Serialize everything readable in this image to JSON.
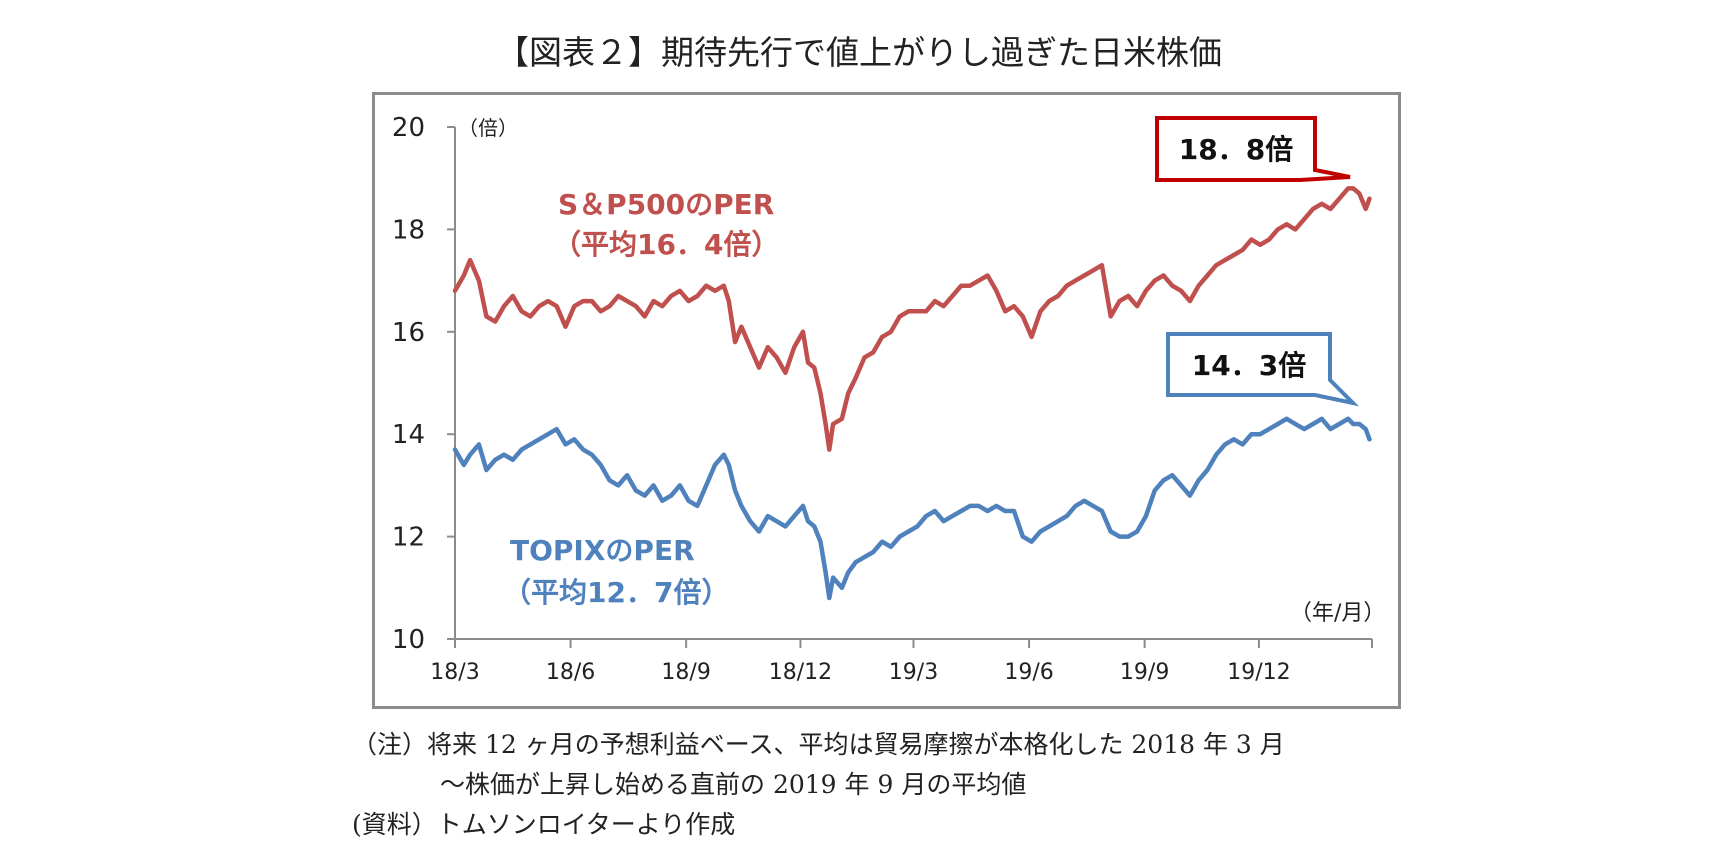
{
  "title": "【図表２】期待先行で値上がりし過ぎた日米株価",
  "notes": {
    "line1": "（注）将来 12 ヶ月の予想利益ベース、平均は貿易摩擦が本格化した 2018 年 3 月",
    "line2": "～株価が上昇し始める直前の 2019 年 9 月の平均値",
    "line3": "(資料）トムソンロイターより作成"
  },
  "colors": {
    "sp500": "#c0504d",
    "topix": "#4f81bd",
    "sp_callout_border": "#c00000",
    "axis": "#8c8c8c"
  },
  "chart_data": {
    "type": "line",
    "y_unit_label": "（倍）",
    "x_unit_label": "（年/月）",
    "ylim": [
      10,
      20
    ],
    "yticks": [
      10,
      12,
      14,
      16,
      18,
      20
    ],
    "xlim": [
      "2018-03",
      "2020-02"
    ],
    "xticks": [
      {
        "label": "18/3",
        "date": "2018-03"
      },
      {
        "label": "18/6",
        "date": "2018-06"
      },
      {
        "label": "18/9",
        "date": "2018-09"
      },
      {
        "label": "18/12",
        "date": "2018-12"
      },
      {
        "label": "19/3",
        "date": "2019-03"
      },
      {
        "label": "19/6",
        "date": "2019-06"
      },
      {
        "label": "19/9",
        "date": "2019-09"
      },
      {
        "label": "19/12",
        "date": "2019-12"
      }
    ],
    "series": [
      {
        "key": "sp500",
        "name": "S＆P500のPER",
        "avg_label": "（平均16．4倍）",
        "callout": "18．8倍",
        "points": [
          [
            "2018-03-01",
            16.8
          ],
          [
            "2018-03-08",
            17.1
          ],
          [
            "2018-03-13",
            17.4
          ],
          [
            "2018-03-20",
            17.0
          ],
          [
            "2018-03-26",
            16.3
          ],
          [
            "2018-04-02",
            16.2
          ],
          [
            "2018-04-09",
            16.5
          ],
          [
            "2018-04-16",
            16.7
          ],
          [
            "2018-04-23",
            16.4
          ],
          [
            "2018-04-30",
            16.3
          ],
          [
            "2018-05-07",
            16.5
          ],
          [
            "2018-05-14",
            16.6
          ],
          [
            "2018-05-21",
            16.5
          ],
          [
            "2018-05-28",
            16.1
          ],
          [
            "2018-06-04",
            16.5
          ],
          [
            "2018-06-11",
            16.6
          ],
          [
            "2018-06-18",
            16.6
          ],
          [
            "2018-06-25",
            16.4
          ],
          [
            "2018-07-02",
            16.5
          ],
          [
            "2018-07-09",
            16.7
          ],
          [
            "2018-07-16",
            16.6
          ],
          [
            "2018-07-23",
            16.5
          ],
          [
            "2018-07-30",
            16.3
          ],
          [
            "2018-08-06",
            16.6
          ],
          [
            "2018-08-13",
            16.5
          ],
          [
            "2018-08-20",
            16.7
          ],
          [
            "2018-08-27",
            16.8
          ],
          [
            "2018-09-03",
            16.6
          ],
          [
            "2018-09-10",
            16.7
          ],
          [
            "2018-09-17",
            16.9
          ],
          [
            "2018-09-24",
            16.8
          ],
          [
            "2018-10-01",
            16.9
          ],
          [
            "2018-10-05",
            16.6
          ],
          [
            "2018-10-10",
            15.8
          ],
          [
            "2018-10-15",
            16.1
          ],
          [
            "2018-10-22",
            15.7
          ],
          [
            "2018-10-29",
            15.3
          ],
          [
            "2018-11-05",
            15.7
          ],
          [
            "2018-11-12",
            15.5
          ],
          [
            "2018-11-19",
            15.2
          ],
          [
            "2018-11-26",
            15.7
          ],
          [
            "2018-12-03",
            16.0
          ],
          [
            "2018-12-07",
            15.4
          ],
          [
            "2018-12-12",
            15.3
          ],
          [
            "2018-12-17",
            14.8
          ],
          [
            "2018-12-21",
            14.2
          ],
          [
            "2018-12-24",
            13.7
          ],
          [
            "2018-12-27",
            14.2
          ],
          [
            "2019-01-03",
            14.3
          ],
          [
            "2019-01-08",
            14.8
          ],
          [
            "2019-01-14",
            15.1
          ],
          [
            "2019-01-21",
            15.5
          ],
          [
            "2019-01-28",
            15.6
          ],
          [
            "2019-02-04",
            15.9
          ],
          [
            "2019-02-11",
            16.0
          ],
          [
            "2019-02-18",
            16.3
          ],
          [
            "2019-02-25",
            16.4
          ],
          [
            "2019-03-04",
            16.4
          ],
          [
            "2019-03-11",
            16.4
          ],
          [
            "2019-03-18",
            16.6
          ],
          [
            "2019-03-25",
            16.5
          ],
          [
            "2019-04-01",
            16.7
          ],
          [
            "2019-04-08",
            16.9
          ],
          [
            "2019-04-15",
            16.9
          ],
          [
            "2019-04-22",
            17.0
          ],
          [
            "2019-04-29",
            17.1
          ],
          [
            "2019-05-06",
            16.8
          ],
          [
            "2019-05-13",
            16.4
          ],
          [
            "2019-05-20",
            16.5
          ],
          [
            "2019-05-27",
            16.3
          ],
          [
            "2019-06-03",
            15.9
          ],
          [
            "2019-06-10",
            16.4
          ],
          [
            "2019-06-17",
            16.6
          ],
          [
            "2019-06-24",
            16.7
          ],
          [
            "2019-07-01",
            16.9
          ],
          [
            "2019-07-08",
            17.0
          ],
          [
            "2019-07-15",
            17.1
          ],
          [
            "2019-07-22",
            17.2
          ],
          [
            "2019-07-29",
            17.3
          ],
          [
            "2019-08-05",
            16.3
          ],
          [
            "2019-08-12",
            16.6
          ],
          [
            "2019-08-19",
            16.7
          ],
          [
            "2019-08-26",
            16.5
          ],
          [
            "2019-09-02",
            16.8
          ],
          [
            "2019-09-09",
            17.0
          ],
          [
            "2019-09-16",
            17.1
          ],
          [
            "2019-09-23",
            16.9
          ],
          [
            "2019-09-30",
            16.8
          ],
          [
            "2019-10-07",
            16.6
          ],
          [
            "2019-10-14",
            16.9
          ],
          [
            "2019-10-21",
            17.1
          ],
          [
            "2019-10-28",
            17.3
          ],
          [
            "2019-11-04",
            17.4
          ],
          [
            "2019-11-11",
            17.5
          ],
          [
            "2019-11-18",
            17.6
          ],
          [
            "2019-11-25",
            17.8
          ],
          [
            "2019-12-02",
            17.7
          ],
          [
            "2019-12-09",
            17.8
          ],
          [
            "2019-12-16",
            18.0
          ],
          [
            "2019-12-23",
            18.1
          ],
          [
            "2019-12-30",
            18.0
          ],
          [
            "2020-01-06",
            18.2
          ],
          [
            "2020-01-13",
            18.4
          ],
          [
            "2020-01-20",
            18.5
          ],
          [
            "2020-01-27",
            18.4
          ],
          [
            "2020-02-03",
            18.6
          ],
          [
            "2020-02-10",
            18.8
          ],
          [
            "2020-02-14",
            18.8
          ],
          [
            "2020-02-19",
            18.7
          ],
          [
            "2020-02-24",
            18.4
          ],
          [
            "2020-02-27",
            18.6
          ]
        ]
      },
      {
        "key": "topix",
        "name": "TOPIXのPER",
        "avg_label": "（平均12．7倍）",
        "callout": "14．3倍",
        "points": [
          [
            "2018-03-01",
            13.7
          ],
          [
            "2018-03-08",
            13.4
          ],
          [
            "2018-03-13",
            13.6
          ],
          [
            "2018-03-20",
            13.8
          ],
          [
            "2018-03-26",
            13.3
          ],
          [
            "2018-04-02",
            13.5
          ],
          [
            "2018-04-09",
            13.6
          ],
          [
            "2018-04-16",
            13.5
          ],
          [
            "2018-04-23",
            13.7
          ],
          [
            "2018-04-30",
            13.8
          ],
          [
            "2018-05-07",
            13.9
          ],
          [
            "2018-05-14",
            14.0
          ],
          [
            "2018-05-21",
            14.1
          ],
          [
            "2018-05-28",
            13.8
          ],
          [
            "2018-06-04",
            13.9
          ],
          [
            "2018-06-11",
            13.7
          ],
          [
            "2018-06-18",
            13.6
          ],
          [
            "2018-06-25",
            13.4
          ],
          [
            "2018-07-02",
            13.1
          ],
          [
            "2018-07-09",
            13.0
          ],
          [
            "2018-07-16",
            13.2
          ],
          [
            "2018-07-23",
            12.9
          ],
          [
            "2018-07-30",
            12.8
          ],
          [
            "2018-08-06",
            13.0
          ],
          [
            "2018-08-13",
            12.7
          ],
          [
            "2018-08-20",
            12.8
          ],
          [
            "2018-08-27",
            13.0
          ],
          [
            "2018-09-03",
            12.7
          ],
          [
            "2018-09-10",
            12.6
          ],
          [
            "2018-09-17",
            13.0
          ],
          [
            "2018-09-24",
            13.4
          ],
          [
            "2018-10-01",
            13.6
          ],
          [
            "2018-10-05",
            13.4
          ],
          [
            "2018-10-10",
            12.9
          ],
          [
            "2018-10-15",
            12.6
          ],
          [
            "2018-10-22",
            12.3
          ],
          [
            "2018-10-29",
            12.1
          ],
          [
            "2018-11-05",
            12.4
          ],
          [
            "2018-11-12",
            12.3
          ],
          [
            "2018-11-19",
            12.2
          ],
          [
            "2018-11-26",
            12.4
          ],
          [
            "2018-12-03",
            12.6
          ],
          [
            "2018-12-07",
            12.3
          ],
          [
            "2018-12-12",
            12.2
          ],
          [
            "2018-12-17",
            11.9
          ],
          [
            "2018-12-21",
            11.3
          ],
          [
            "2018-12-24",
            10.8
          ],
          [
            "2018-12-27",
            11.2
          ],
          [
            "2019-01-03",
            11.0
          ],
          [
            "2019-01-08",
            11.3
          ],
          [
            "2019-01-14",
            11.5
          ],
          [
            "2019-01-21",
            11.6
          ],
          [
            "2019-01-28",
            11.7
          ],
          [
            "2019-02-04",
            11.9
          ],
          [
            "2019-02-11",
            11.8
          ],
          [
            "2019-02-18",
            12.0
          ],
          [
            "2019-02-25",
            12.1
          ],
          [
            "2019-03-04",
            12.2
          ],
          [
            "2019-03-11",
            12.4
          ],
          [
            "2019-03-18",
            12.5
          ],
          [
            "2019-03-25",
            12.3
          ],
          [
            "2019-04-01",
            12.4
          ],
          [
            "2019-04-08",
            12.5
          ],
          [
            "2019-04-15",
            12.6
          ],
          [
            "2019-04-22",
            12.6
          ],
          [
            "2019-04-29",
            12.5
          ],
          [
            "2019-05-06",
            12.6
          ],
          [
            "2019-05-13",
            12.5
          ],
          [
            "2019-05-20",
            12.5
          ],
          [
            "2019-05-27",
            12.0
          ],
          [
            "2019-06-03",
            11.9
          ],
          [
            "2019-06-10",
            12.1
          ],
          [
            "2019-06-17",
            12.2
          ],
          [
            "2019-06-24",
            12.3
          ],
          [
            "2019-07-01",
            12.4
          ],
          [
            "2019-07-08",
            12.6
          ],
          [
            "2019-07-15",
            12.7
          ],
          [
            "2019-07-22",
            12.6
          ],
          [
            "2019-07-29",
            12.5
          ],
          [
            "2019-08-05",
            12.1
          ],
          [
            "2019-08-12",
            12.0
          ],
          [
            "2019-08-19",
            12.0
          ],
          [
            "2019-08-26",
            12.1
          ],
          [
            "2019-09-02",
            12.4
          ],
          [
            "2019-09-09",
            12.9
          ],
          [
            "2019-09-16",
            13.1
          ],
          [
            "2019-09-23",
            13.2
          ],
          [
            "2019-09-30",
            13.0
          ],
          [
            "2019-10-07",
            12.8
          ],
          [
            "2019-10-14",
            13.1
          ],
          [
            "2019-10-21",
            13.3
          ],
          [
            "2019-10-28",
            13.6
          ],
          [
            "2019-11-04",
            13.8
          ],
          [
            "2019-11-11",
            13.9
          ],
          [
            "2019-11-18",
            13.8
          ],
          [
            "2019-11-25",
            14.0
          ],
          [
            "2019-12-02",
            14.0
          ],
          [
            "2019-12-09",
            14.1
          ],
          [
            "2019-12-16",
            14.2
          ],
          [
            "2019-12-23",
            14.3
          ],
          [
            "2019-12-30",
            14.2
          ],
          [
            "2020-01-06",
            14.1
          ],
          [
            "2020-01-13",
            14.2
          ],
          [
            "2020-01-20",
            14.3
          ],
          [
            "2020-01-27",
            14.1
          ],
          [
            "2020-02-03",
            14.2
          ],
          [
            "2020-02-10",
            14.3
          ],
          [
            "2020-02-14",
            14.2
          ],
          [
            "2020-02-19",
            14.2
          ],
          [
            "2020-02-24",
            14.1
          ],
          [
            "2020-02-27",
            13.9
          ]
        ]
      }
    ]
  }
}
